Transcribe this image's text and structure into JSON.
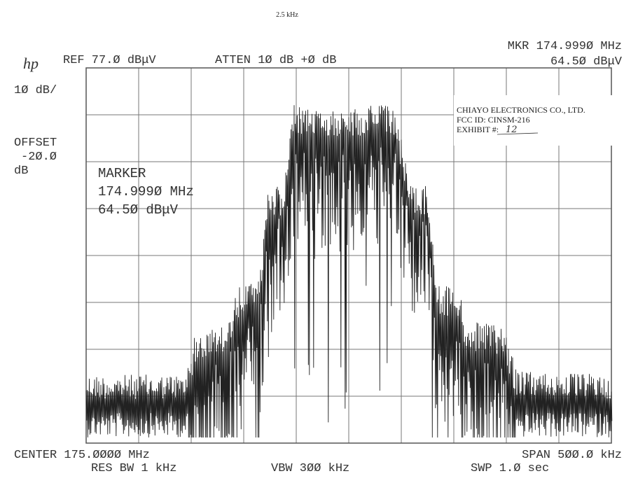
{
  "header": {
    "note": "2.5 kHz",
    "logo": "hp",
    "ref": "REF 77.Ø dBμV",
    "atten": "ATTEN 1Ø dB +Ø dB",
    "marker_freq": "MKR 174.999Ø MHz",
    "marker_level": "64.5Ø dBμV"
  },
  "left_panel": {
    "scale": "1Ø dB/",
    "offset_label": "OFFSET",
    "offset_value": "-2Ø.Ø",
    "offset_unit": "dB"
  },
  "marker_box": {
    "title": "MARKER",
    "freq": "174.999Ø MHz",
    "level": "64.5Ø dBμV"
  },
  "stamp": {
    "company": "CHIAYO ELECTRONICS CO., LTD.",
    "fcc_id": "FCC ID: CINSM-216",
    "exhibit_label": "EXHIBIT #:",
    "exhibit_number": "12"
  },
  "footer": {
    "center": "CENTER 175.ØØØØ MHz",
    "span": "SPAN 5ØØ.Ø kHz",
    "res_bw": "RES BW 1 kHz",
    "vbw": "VBW 3ØØ kHz",
    "sweep": "SWP 1.Ø sec"
  }
}
